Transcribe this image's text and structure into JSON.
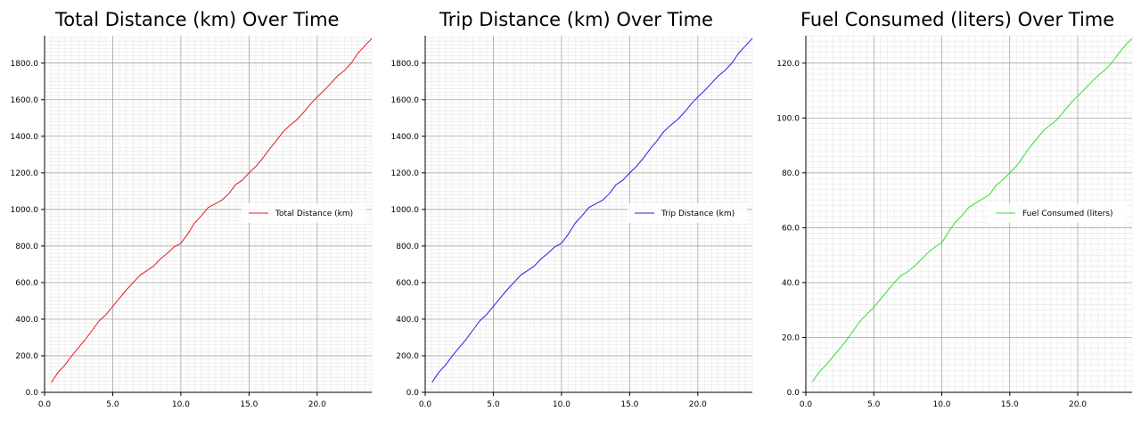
{
  "chart_data": [
    {
      "type": "line",
      "title": "Total Distance (km) Over Time",
      "xlabel": "",
      "ylabel": "",
      "xlim": [
        0,
        24
      ],
      "ylim": [
        0,
        1950
      ],
      "grid": true,
      "legend_position": "center-right",
      "x_ticks": [
        0,
        5,
        10,
        15,
        20
      ],
      "x_tick_labels": [
        "0.0",
        "5.0",
        "10.0",
        "15.0",
        "20.0"
      ],
      "y_ticks": [
        0,
        200,
        400,
        600,
        800,
        1000,
        1200,
        1400,
        1600,
        1800
      ],
      "y_tick_labels": [
        "0.0",
        "200.0",
        "400.0",
        "600.0",
        "800.0",
        "1000.0",
        "1200.0",
        "1400.0",
        "1600.0",
        "1800.0"
      ],
      "series": [
        {
          "name": "Total Distance (km)",
          "color": "#e41a1c",
          "x": [
            0.5,
            1,
            1.5,
            2,
            2.5,
            3,
            3.5,
            4,
            4.5,
            5,
            5.5,
            6,
            6.5,
            7,
            7.5,
            8,
            8.5,
            9,
            9.5,
            10,
            10.5,
            11,
            11.5,
            12,
            12.5,
            13,
            13.5,
            14,
            14.5,
            15,
            15.5,
            16,
            16.5,
            17,
            17.5,
            18,
            18.5,
            19,
            19.5,
            20,
            20.5,
            21,
            21.5,
            22,
            22.5,
            23,
            23.5,
            24
          ],
          "y": [
            55,
            110,
            150,
            200,
            245,
            290,
            340,
            390,
            425,
            470,
            515,
            560,
            600,
            640,
            665,
            690,
            730,
            760,
            795,
            815,
            865,
            925,
            965,
            1010,
            1030,
            1050,
            1085,
            1135,
            1160,
            1200,
            1235,
            1280,
            1330,
            1375,
            1425,
            1460,
            1490,
            1530,
            1575,
            1615,
            1650,
            1690,
            1730,
            1760,
            1800,
            1855,
            1895,
            1935
          ]
        }
      ]
    },
    {
      "type": "line",
      "title": "Trip Distance (km) Over Time",
      "xlabel": "",
      "ylabel": "",
      "xlim": [
        0,
        24
      ],
      "ylim": [
        0,
        1950
      ],
      "grid": true,
      "legend_position": "center-right",
      "x_ticks": [
        0,
        5,
        10,
        15,
        20
      ],
      "x_tick_labels": [
        "0.0",
        "5.0",
        "10.0",
        "15.0",
        "20.0"
      ],
      "y_ticks": [
        0,
        200,
        400,
        600,
        800,
        1000,
        1200,
        1400,
        1600,
        1800
      ],
      "y_tick_labels": [
        "0.0",
        "200.0",
        "400.0",
        "600.0",
        "800.0",
        "1000.0",
        "1200.0",
        "1400.0",
        "1600.0",
        "1800.0"
      ],
      "series": [
        {
          "name": "Trip Distance (km)",
          "color": "#1f1fe0",
          "x": [
            0.5,
            1,
            1.5,
            2,
            2.5,
            3,
            3.5,
            4,
            4.5,
            5,
            5.5,
            6,
            6.5,
            7,
            7.5,
            8,
            8.5,
            9,
            9.5,
            10,
            10.5,
            11,
            11.5,
            12,
            12.5,
            13,
            13.5,
            14,
            14.5,
            15,
            15.5,
            16,
            16.5,
            17,
            17.5,
            18,
            18.5,
            19,
            19.5,
            20,
            20.5,
            21,
            21.5,
            22,
            22.5,
            23,
            23.5,
            24
          ],
          "y": [
            55,
            110,
            150,
            200,
            245,
            290,
            340,
            390,
            425,
            470,
            515,
            560,
            600,
            640,
            665,
            690,
            730,
            760,
            795,
            815,
            865,
            925,
            965,
            1010,
            1030,
            1050,
            1085,
            1135,
            1160,
            1200,
            1235,
            1280,
            1330,
            1375,
            1425,
            1460,
            1490,
            1530,
            1575,
            1615,
            1650,
            1690,
            1730,
            1760,
            1800,
            1855,
            1895,
            1935
          ]
        }
      ]
    },
    {
      "type": "line",
      "title": "Fuel Consumed (liters) Over Time",
      "xlabel": "",
      "ylabel": "",
      "xlim": [
        0,
        24
      ],
      "ylim": [
        0,
        130
      ],
      "grid": true,
      "legend_position": "center-right",
      "x_ticks": [
        0,
        5,
        10,
        15,
        20
      ],
      "x_tick_labels": [
        "0.0",
        "5.0",
        "10.0",
        "15.0",
        "20.0"
      ],
      "y_ticks": [
        0,
        20,
        40,
        60,
        80,
        100,
        120
      ],
      "y_tick_labels": [
        "0.0",
        "20.0",
        "40.0",
        "60.0",
        "80.0",
        "100.0",
        "120.0"
      ],
      "series": [
        {
          "name": "Fuel Consumed (liters)",
          "color": "#2ee02e",
          "x": [
            0.5,
            1,
            1.5,
            2,
            2.5,
            3,
            3.5,
            4,
            4.5,
            5,
            5.5,
            6,
            6.5,
            7,
            7.5,
            8,
            8.5,
            9,
            9.5,
            10,
            10.5,
            11,
            11.5,
            12,
            12.5,
            13,
            13.5,
            14,
            14.5,
            15,
            15.5,
            16,
            16.5,
            17,
            17.5,
            18,
            18.5,
            19,
            19.5,
            20,
            20.5,
            21,
            21.5,
            22,
            22.5,
            23,
            23.5,
            24
          ],
          "y": [
            4,
            7.5,
            10,
            13,
            16,
            19,
            22.5,
            26,
            28.5,
            31,
            34,
            37,
            40,
            42.5,
            44,
            46,
            48.5,
            51,
            53,
            54.5,
            58.5,
            62,
            64.5,
            67.5,
            69,
            70.5,
            72,
            75.5,
            77.5,
            80,
            82.5,
            86,
            89.5,
            92.5,
            95.5,
            97.5,
            99.5,
            102.5,
            105.5,
            108,
            110.5,
            113,
            115.5,
            117.5,
            120,
            123.5,
            126.5,
            129
          ]
        }
      ]
    }
  ]
}
